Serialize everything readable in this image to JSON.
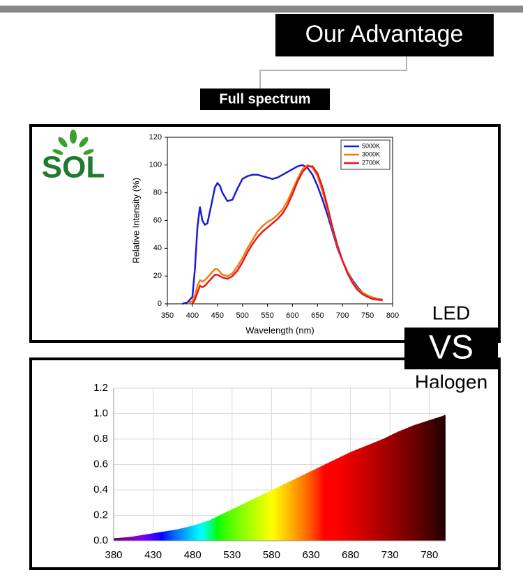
{
  "header": {
    "title": "Our Advantage",
    "subtitle": "Full spectrum"
  },
  "brand": {
    "logo": "SOL"
  },
  "comparison": {
    "top": "LED",
    "middle": "VS",
    "bottom": "Halogen"
  },
  "chart_data": [
    {
      "type": "line",
      "ylabel": "Relative Intensity (%)",
      "xlabel": "Wavelength (nm)",
      "x": [
        380,
        390,
        400,
        405,
        410,
        415,
        420,
        425,
        430,
        440,
        445,
        450,
        455,
        460,
        470,
        480,
        490,
        500,
        510,
        520,
        530,
        540,
        550,
        560,
        570,
        580,
        590,
        600,
        610,
        620,
        630,
        640,
        650,
        660,
        670,
        680,
        690,
        700,
        710,
        720,
        730,
        740,
        750,
        760,
        770,
        780
      ],
      "series": [
        {
          "name": "5000K",
          "color": "#1a1adc",
          "values": [
            0,
            1,
            5,
            25,
            55,
            70,
            60,
            57,
            58,
            75,
            84,
            87,
            85,
            80,
            74,
            75,
            83,
            90,
            92,
            93,
            93,
            92,
            91,
            90,
            91,
            93,
            95,
            97,
            99,
            100,
            98,
            93,
            85,
            75,
            64,
            52,
            40,
            31,
            23,
            17,
            12,
            8,
            6,
            4.5,
            3.5,
            3
          ]
        },
        {
          "name": "3000K",
          "color": "#f07d0a",
          "values": [
            null,
            0,
            2,
            6,
            13,
            17,
            16,
            17,
            19,
            23,
            25,
            25,
            23,
            21,
            20,
            22,
            27,
            33,
            40,
            46,
            52,
            56,
            59,
            61,
            64,
            68,
            74,
            82,
            90,
            97,
            100,
            98,
            92,
            81,
            68,
            54,
            41,
            31,
            23,
            16,
            11,
            8,
            6,
            4.5,
            3.5,
            3
          ]
        },
        {
          "name": "2700K",
          "color": "#e8141e",
          "values": [
            null,
            null,
            0,
            3,
            8,
            13,
            12,
            13,
            15,
            19,
            21,
            21,
            20,
            19,
            18,
            20,
            24,
            30,
            37,
            43,
            48,
            52,
            55,
            58,
            61,
            65,
            71,
            79,
            88,
            95,
            99,
            99,
            94,
            84,
            70,
            55,
            42,
            31,
            22,
            15,
            10,
            7,
            5,
            3.5,
            3,
            2.5
          ]
        }
      ],
      "xlim": [
        350,
        800
      ],
      "xticks": [
        350,
        400,
        450,
        500,
        550,
        600,
        650,
        700,
        750,
        800
      ],
      "ylim": [
        0,
        120
      ],
      "yticks": [
        0,
        20,
        40,
        60,
        80,
        100,
        120
      ],
      "grid": false,
      "legend": "top-right"
    },
    {
      "type": "spectrum-area",
      "x": [
        380,
        400,
        420,
        440,
        460,
        480,
        500,
        520,
        540,
        560,
        580,
        600,
        620,
        640,
        660,
        680,
        700,
        720,
        740,
        760,
        780,
        800
      ],
      "values": [
        0.02,
        0.03,
        0.05,
        0.07,
        0.09,
        0.12,
        0.16,
        0.22,
        0.28,
        0.34,
        0.4,
        0.46,
        0.52,
        0.58,
        0.64,
        0.7,
        0.75,
        0.8,
        0.86,
        0.91,
        0.95,
        0.99
      ],
      "xlim": [
        380,
        800
      ],
      "xticks": [
        380,
        430,
        480,
        530,
        580,
        630,
        680,
        730,
        780
      ],
      "ylim": [
        0,
        1.2
      ],
      "yticks": [
        {
          "value": 0,
          "label": "0.0"
        },
        0.2,
        0.4,
        0.6,
        0.8,
        {
          "value": 1,
          "label": "1.0"
        },
        1.2
      ],
      "grid": true
    }
  ]
}
